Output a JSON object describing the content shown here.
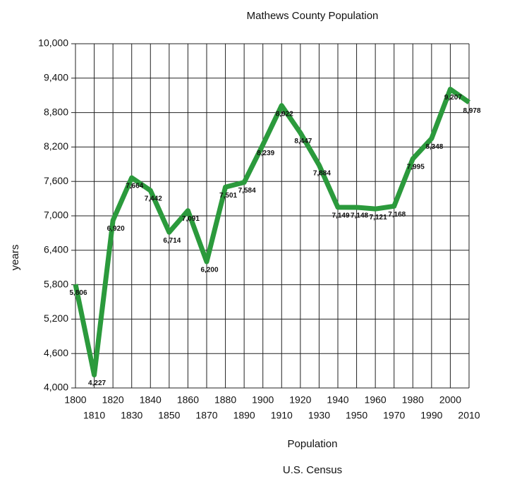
{
  "chart_data": {
    "type": "line",
    "title": "Mathews County Population",
    "x_label": "Population",
    "subtitle": "U.S. Census",
    "y_label": "years",
    "x": [
      1800,
      1810,
      1820,
      1830,
      1840,
      1850,
      1860,
      1870,
      1880,
      1890,
      1900,
      1910,
      1920,
      1930,
      1940,
      1950,
      1960,
      1970,
      1980,
      1990,
      2000,
      2010
    ],
    "series": [
      {
        "name": "Population",
        "color": "#2b9a3c",
        "values": [
          5806,
          4227,
          6920,
          7664,
          7442,
          6714,
          7091,
          6200,
          7501,
          7584,
          8239,
          8922,
          8447,
          7884,
          7149,
          7148,
          7121,
          7168,
          7995,
          8348,
          9207,
          8978
        ],
        "value_labels": [
          "5,806",
          "4,227",
          "6,920",
          "7,664",
          "7,442",
          "6,714",
          "7,091",
          "6,200",
          "7,501",
          "7,584",
          "8,239",
          "8,922",
          "8,447",
          "7,884",
          "7,149",
          "7,148",
          "7,121",
          "7,168",
          "7,995",
          "8,348",
          "9,207",
          "8,978"
        ]
      }
    ],
    "xlim": [
      1800,
      2010
    ],
    "xticks": [
      1800,
      1810,
      1820,
      1830,
      1840,
      1850,
      1860,
      1870,
      1880,
      1890,
      1900,
      1910,
      1920,
      1930,
      1940,
      1950,
      1960,
      1970,
      1980,
      1990,
      2000,
      2010
    ],
    "ylim": [
      4000,
      10000
    ],
    "yticks": [
      {
        "value": 4000,
        "label": "4,000"
      },
      {
        "value": 4600,
        "label": "4,600"
      },
      {
        "value": 5200,
        "label": "5,200"
      },
      {
        "value": 5800,
        "label": "5,800"
      },
      {
        "value": 6400,
        "label": "6,400"
      },
      {
        "value": 7000,
        "label": "7,000"
      },
      {
        "value": 7600,
        "label": "7,600"
      },
      {
        "value": 8200,
        "label": "8,200"
      },
      {
        "value": 8800,
        "label": "8,800"
      },
      {
        "value": 9400,
        "label": "9,400"
      },
      {
        "value": 10000,
        "label": "10,000"
      }
    ],
    "grid": true
  }
}
